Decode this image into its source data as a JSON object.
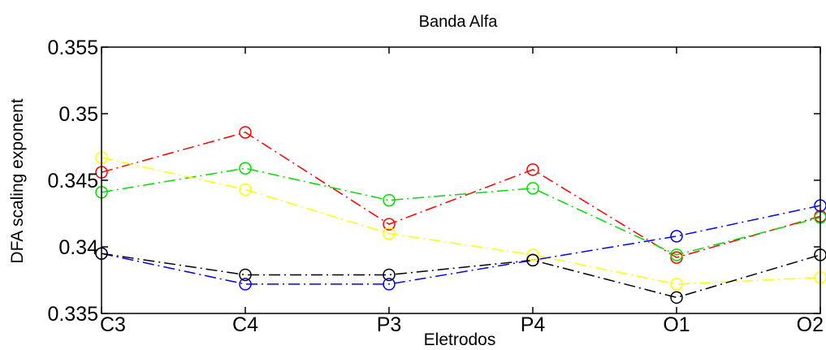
{
  "chart_data": {
    "type": "line",
    "title": "Banda Alfa",
    "xlabel": "Eletrodos",
    "ylabel": "DFA scaling exponent",
    "categories": [
      "C3",
      "C4",
      "P3",
      "P4",
      "O1",
      "O2"
    ],
    "ylim": [
      0.335,
      0.355
    ],
    "yticks": [
      0.335,
      0.34,
      0.345,
      0.35,
      0.355
    ],
    "ytick_labels": [
      "0.335",
      "0.34",
      "0.345",
      "0.35",
      "0.355"
    ],
    "grid": false,
    "legend": "none",
    "marker": "circle",
    "line_style": "dash-dot",
    "series": [
      {
        "color": "#ff0000",
        "values": [
          0.3456,
          0.3486,
          0.3417,
          0.3458,
          0.3392,
          0.3423
        ]
      },
      {
        "color": "#00dd00",
        "values": [
          0.3441,
          0.3459,
          0.3435,
          0.3444,
          0.3394,
          0.3422
        ]
      },
      {
        "color": "#ffff00",
        "values": [
          0.3467,
          0.3443,
          0.341,
          0.3394,
          0.3372,
          0.3377
        ]
      },
      {
        "color": "#0000ff",
        "values": [
          0.3395,
          0.3372,
          0.3372,
          0.339,
          0.3408,
          0.3431
        ]
      },
      {
        "color": "#000000",
        "values": [
          0.3395,
          0.3379,
          0.3379,
          0.339,
          0.3362,
          0.3394
        ]
      }
    ]
  }
}
